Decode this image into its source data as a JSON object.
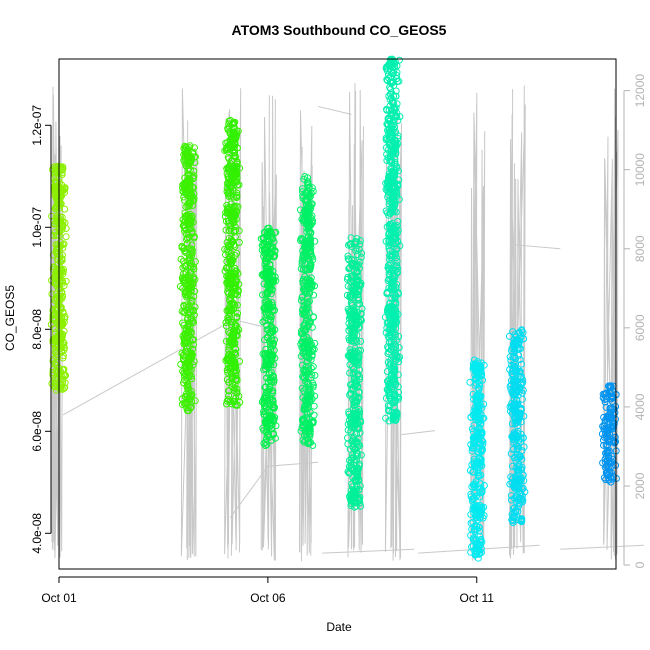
{
  "chart_data": {
    "type": "scatter",
    "title": "ATOM3 Southbound CO_GEOS5",
    "xlabel": "Date",
    "ylabel": "CO_GEOS5",
    "x_ticks": [
      "Oct 01",
      "Oct 06",
      "Oct 11"
    ],
    "x_range": [
      "2017-10-01T00:00",
      "2017-10-14T08:00"
    ],
    "y_ticks": [
      "4.0e-08",
      "6.0e-08",
      "8.0e-08",
      "1.0e-07",
      "1.2e-07"
    ],
    "ylim": [
      3.3e-08,
      1.33e-07
    ],
    "y2_ticks": [
      "0",
      "2000",
      "4000",
      "6000",
      "8000",
      "10000",
      "12000"
    ],
    "y2lim": [
      -100,
      12800
    ],
    "grid": false,
    "legend": "none",
    "colors": {
      "altitude_line": "#c8c8c8",
      "axis": "#000000",
      "right_axis": "#b3b3b3"
    },
    "series": [
      {
        "x": "2017-10-01T00:05",
        "ymin": 6.8e-08,
        "ymax": 1.12e-07,
        "color": "#8cf000"
      },
      {
        "x": "2017-10-04T02:10",
        "ymin": 6.4e-08,
        "ymax": 1.16e-07,
        "color": "#3cf000"
      },
      {
        "x": "2017-10-05T03:30",
        "ymin": 6.5e-08,
        "ymax": 1.21e-07,
        "color": "#32f000"
      },
      {
        "x": "2017-10-06T00:40",
        "ymin": 5.7e-08,
        "ymax": 1e-07,
        "color": "#00f04a"
      },
      {
        "x": "2017-10-06T22:40",
        "ymin": 5.7e-08,
        "ymax": 1.1e-07,
        "color": "#00f066"
      },
      {
        "x": "2017-10-08T01:50",
        "ymin": 4.5e-08,
        "ymax": 9.8e-08,
        "color": "#00f09a"
      },
      {
        "x": "2017-10-08T23:40",
        "ymin": 6.2e-08,
        "ymax": 1.33e-07,
        "color": "#00f0b0"
      },
      {
        "x": "2017-10-11T00:15",
        "ymin": 3.5e-08,
        "ymax": 7.4e-08,
        "color": "#00eaf0"
      },
      {
        "x": "2017-10-11T23:10",
        "ymin": 4.2e-08,
        "ymax": 8e-08,
        "color": "#00dcf0"
      },
      {
        "x": "2017-10-14T04:20",
        "ymin": 5e-08,
        "ymax": 6.9e-08,
        "color": "#0094f0"
      }
    ]
  }
}
